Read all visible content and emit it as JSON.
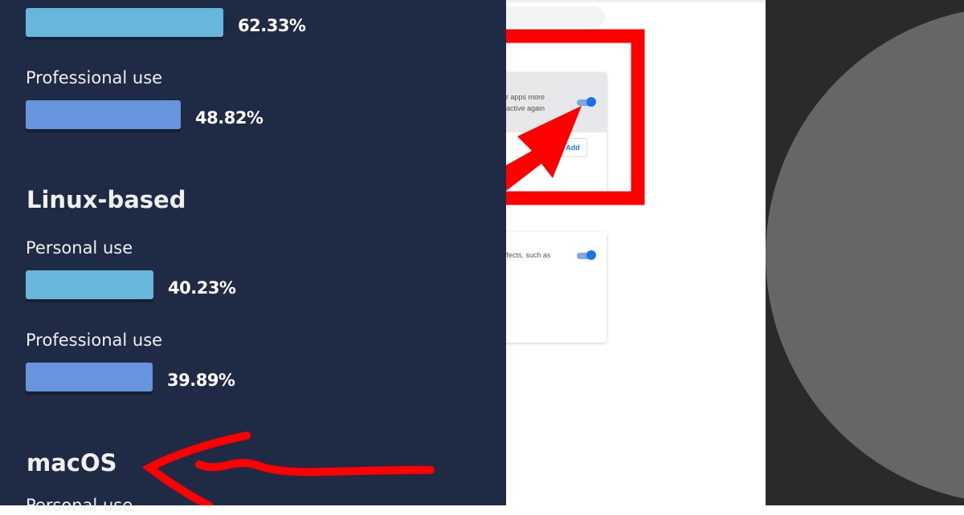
{
  "stats_panel": {
    "windows_personal_pct": "62.33%",
    "windows_personal_value": 62.33,
    "windows_professional_label": "Professional use",
    "windows_professional_pct": "48.82%",
    "windows_professional_value": 48.82,
    "linux_heading": "Linux-based",
    "linux_personal_label": "Personal use",
    "linux_personal_pct": "40.23%",
    "linux_personal_value": 40.23,
    "linux_professional_label": "Professional use",
    "linux_professional_pct": "39.89%",
    "linux_professional_value": 39.89,
    "macos_heading": "macOS",
    "macos_personal_label": "Personal use",
    "colors": {
      "background": "#1f2a44",
      "personal_bar": "#67b7dc",
      "professional_bar": "#6794dc",
      "annotation": "#ff0000"
    }
  },
  "settings_panel": {
    "card1_text_line1": "r apps more",
    "card1_text_line2": "active again",
    "card1_toggle_on": true,
    "add_button": "Add",
    "card2_text": "ffects, such as",
    "card2_toggle_on": true,
    "accent": "#1a73e8"
  }
}
